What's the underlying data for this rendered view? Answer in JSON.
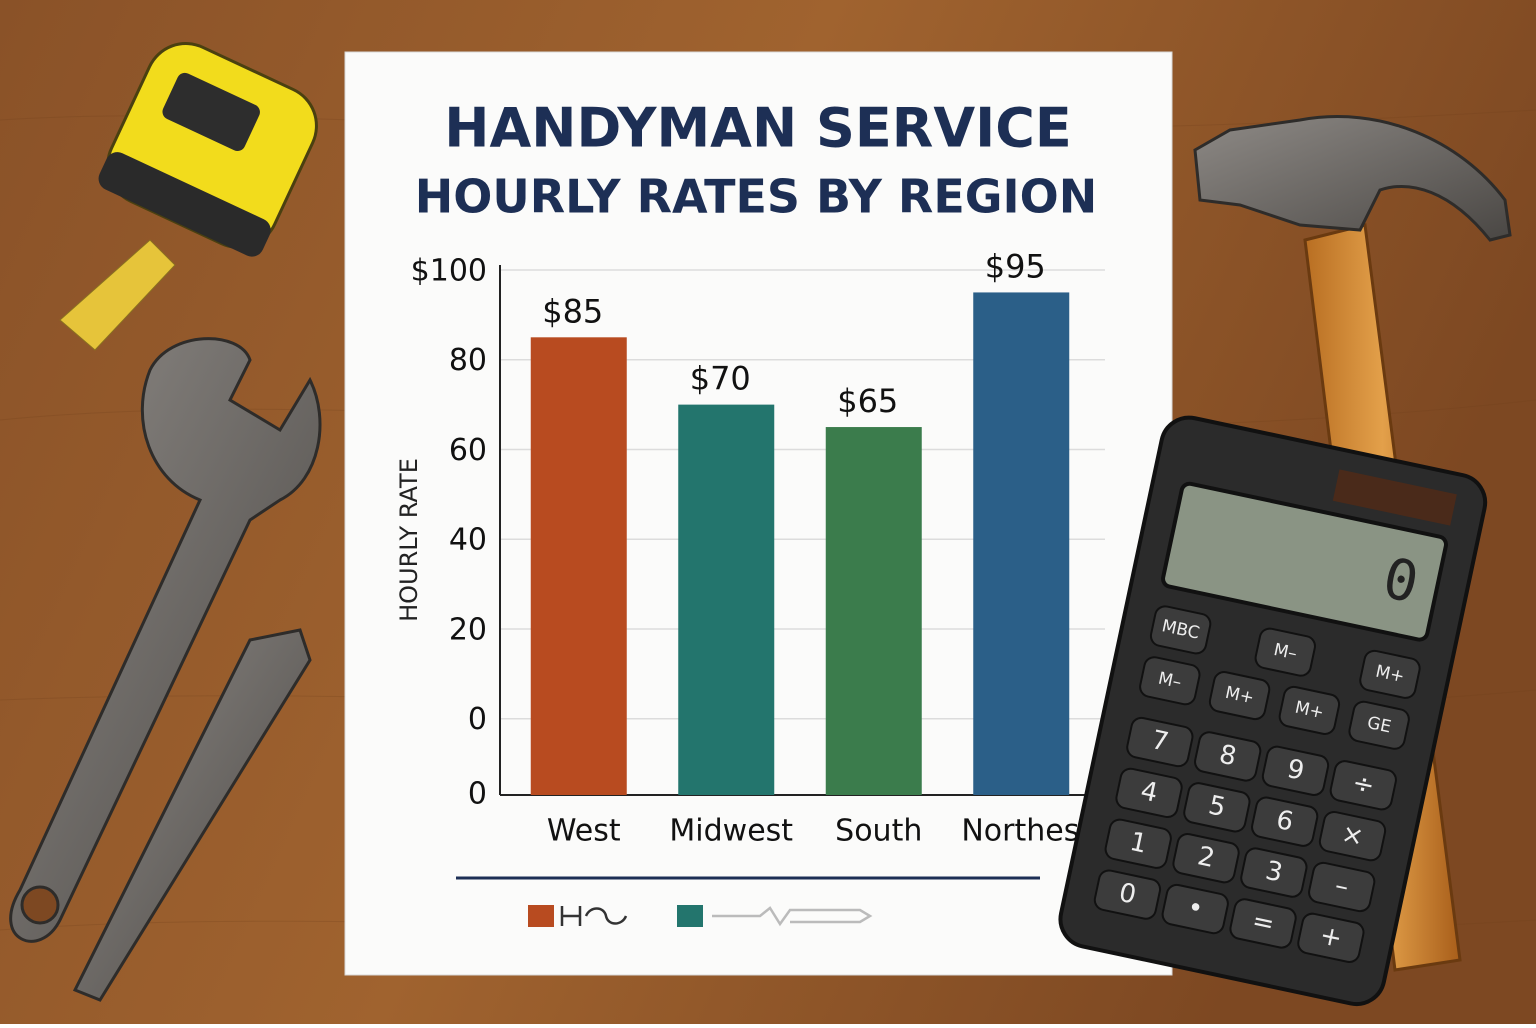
{
  "chart_data": {
    "type": "bar",
    "title": "HANDYMAN SERVICE",
    "subtitle": "HOURLY RATES BY REGION",
    "y_label": "HOURLY RATE",
    "categories": [
      "West",
      "Midwest",
      "South",
      "Northest"
    ],
    "values": [
      85,
      70,
      65,
      95
    ],
    "value_labels": [
      "$85",
      "$70",
      "$65",
      "$95"
    ],
    "colors": [
      "#b84b20",
      "#23756d",
      "#3b7c4c",
      "#2b5f88"
    ],
    "ylim": [
      -17,
      100
    ],
    "yticks": [
      {
        "value": 100,
        "label": "$100"
      },
      80,
      60,
      40,
      20,
      0
    ],
    "baseline_label": "0",
    "grid": true
  },
  "calculator": {
    "display": "0",
    "keys": [
      [
        "MBC",
        "M–",
        "M+"
      ],
      [
        "M–",
        "M+",
        "M+",
        "GE"
      ],
      [
        "7",
        "8",
        "9",
        "÷"
      ],
      [
        "4",
        "5",
        "6",
        "×"
      ],
      [
        "1",
        "2",
        "3",
        "–"
      ],
      [
        "0",
        "•",
        "=",
        "+"
      ]
    ]
  }
}
